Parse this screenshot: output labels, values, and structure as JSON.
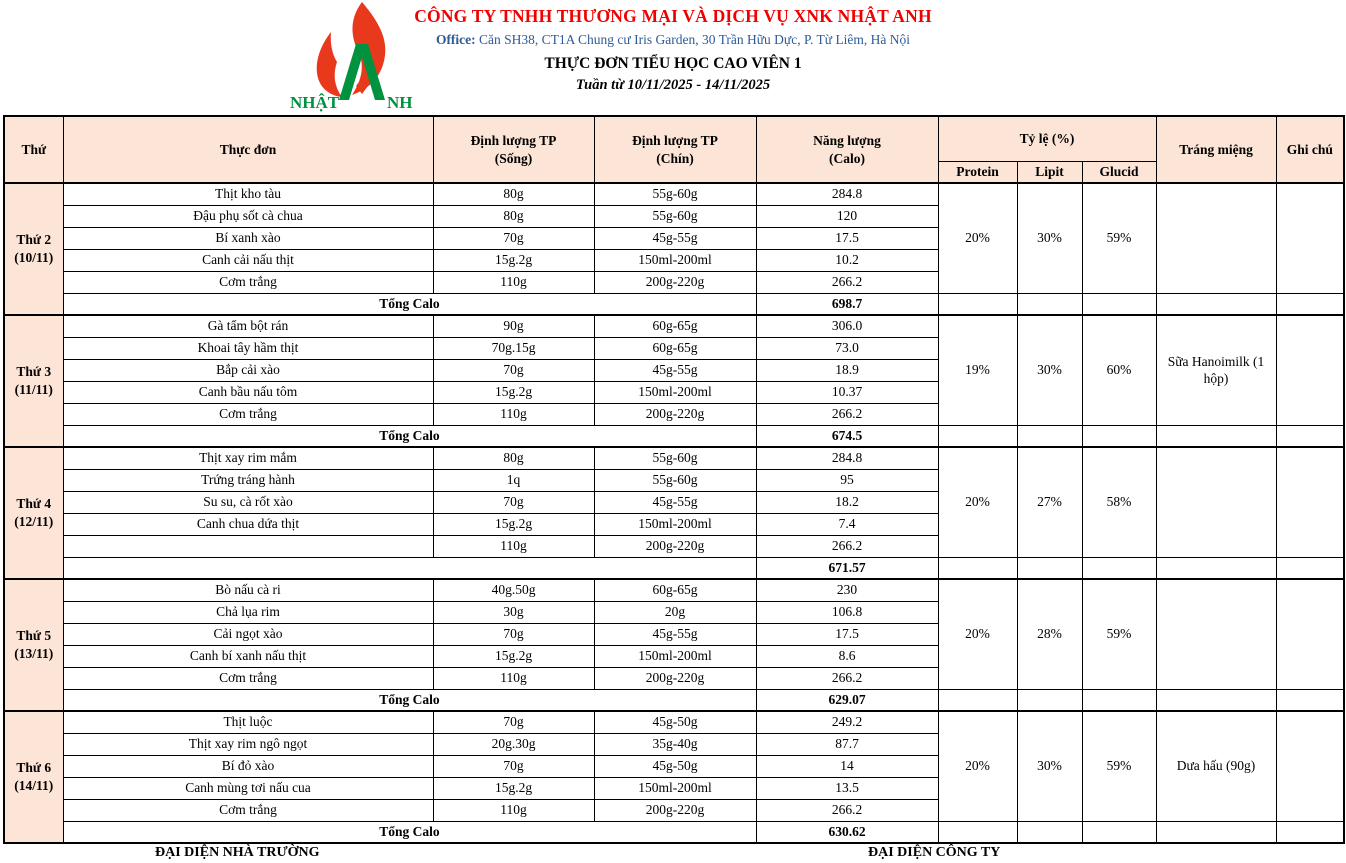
{
  "header": {
    "company": "CÔNG TY TNHH THƯƠNG MẠI VÀ DỊCH VỤ XNK NHẬT ANH",
    "office_label": "Office:",
    "office_address": "Căn SH38, CT1A Chung cư Iris Garden, 30 Trần Hữu Dực, P. Từ Liêm, Hà Nội",
    "title": "THỰC ĐƠN TIỂU HỌC CAO VIÊN 1",
    "week": "Tuần từ 10/11/2025 - 14/11/2025",
    "logo": {
      "text_left": "NHẬT",
      "text_right": "NH"
    },
    "colors": {
      "company_red": "#f10000",
      "office_blue": "#2e5b97",
      "header_peach": "#fce4d6",
      "logo_red": "#e8391d",
      "logo_green": "#00923f"
    }
  },
  "table": {
    "columns": {
      "day": "Thứ",
      "menu": "Thực đơn",
      "raw_line1": "Định lượng TP",
      "raw_line2": "(Sống)",
      "cooked_line1": "Định lượng TP",
      "cooked_line2": "(Chín)",
      "energy_line1": "Năng lượng",
      "energy_line2": "(Calo)",
      "ratio": "Tỷ lệ (%)",
      "protein": "Protein",
      "lipit": "Lipit",
      "glucid": "Glucid",
      "dessert": "Tráng miệng",
      "note": "Ghi chú"
    },
    "groups": [
      {
        "day": "Thứ 2",
        "date": "(10/11)",
        "dishes": [
          {
            "name": "Thịt kho tàu",
            "raw": "80g",
            "cooked": "55g-60g",
            "calo": "284.8"
          },
          {
            "name": "Đậu phụ sốt cà chua",
            "raw": "80g",
            "cooked": "55g-60g",
            "calo": "120"
          },
          {
            "name": "Bí xanh xào",
            "raw": "70g",
            "cooked": "45g-55g",
            "calo": "17.5"
          },
          {
            "name": "Canh cải nấu thịt",
            "raw": "15g.2g",
            "cooked": "150ml-200ml",
            "calo": "10.2"
          },
          {
            "name": "Cơm trắng",
            "raw": "110g",
            "cooked": "200g-220g",
            "calo": "266.2"
          }
        ],
        "total_label": "Tổng Calo",
        "total": "698.7",
        "protein": "20%",
        "lipit": "30%",
        "glucid": "59%",
        "dessert": "",
        "note": ""
      },
      {
        "day": "Thứ 3",
        "date": "(11/11)",
        "dishes": [
          {
            "name": "Gà tẩm bột rán",
            "raw": "90g",
            "cooked": "60g-65g",
            "calo": "306.0"
          },
          {
            "name": "Khoai tây hầm thịt",
            "raw": "70g.15g",
            "cooked": "60g-65g",
            "calo": "73.0"
          },
          {
            "name": "Bắp cải xào",
            "raw": "70g",
            "cooked": "45g-55g",
            "calo": "18.9"
          },
          {
            "name": "Canh bầu nấu tôm",
            "raw": "15g.2g",
            "cooked": "150ml-200ml",
            "calo": "10.37"
          },
          {
            "name": "Cơm trắng",
            "raw": "110g",
            "cooked": "200g-220g",
            "calo": "266.2"
          }
        ],
        "total_label": "Tổng Calo",
        "total": "674.5",
        "protein": "19%",
        "lipit": "30%",
        "glucid": "60%",
        "dessert": "Sữa Hanoimilk (1 hộp)",
        "note": ""
      },
      {
        "day": "Thứ 4",
        "date": "(12/11)",
        "dishes": [
          {
            "name": "Thịt xay rim mắm",
            "raw": "80g",
            "cooked": "55g-60g",
            "calo": "284.8"
          },
          {
            "name": "Trứng tráng hành",
            "raw": "1q",
            "cooked": "55g-60g",
            "calo": "95"
          },
          {
            "name": "Su su, cà rốt xào",
            "raw": "70g",
            "cooked": "45g-55g",
            "calo": "18.2"
          },
          {
            "name": "Canh chua dứa thịt",
            "raw": "15g.2g",
            "cooked": "150ml-200ml",
            "calo": "7.4"
          },
          {
            "name": "",
            "raw": "110g",
            "cooked": "200g-220g",
            "calo": "266.2"
          }
        ],
        "total_label": "",
        "total": "671.57",
        "protein": "20%",
        "lipit": "27%",
        "glucid": "58%",
        "dessert": "",
        "note": ""
      },
      {
        "day": "Thứ 5",
        "date": "(13/11)",
        "dishes": [
          {
            "name": "Bò nấu cà ri",
            "raw": "40g.50g",
            "cooked": "60g-65g",
            "calo": "230"
          },
          {
            "name": "Chả lụa rim",
            "raw": "30g",
            "cooked": "20g",
            "calo": "106.8"
          },
          {
            "name": "Cải ngọt xào",
            "raw": "70g",
            "cooked": "45g-55g",
            "calo": "17.5"
          },
          {
            "name": "Canh bí xanh nấu thịt",
            "raw": "15g.2g",
            "cooked": "150ml-200ml",
            "calo": "8.6"
          },
          {
            "name": "Cơm trắng",
            "raw": "110g",
            "cooked": "200g-220g",
            "calo": "266.2"
          }
        ],
        "total_label": "Tổng Calo",
        "total": "629.07",
        "protein": "20%",
        "lipit": "28%",
        "glucid": "59%",
        "dessert": "",
        "note": ""
      },
      {
        "day": "Thứ 6",
        "date": "(14/11)",
        "dishes": [
          {
            "name": "Thịt luộc",
            "raw": "70g",
            "cooked": "45g-50g",
            "calo": "249.2"
          },
          {
            "name": "Thịt xay rim ngô ngọt",
            "raw": "20g.30g",
            "cooked": "35g-40g",
            "calo": "87.7"
          },
          {
            "name": "Bí đỏ xào",
            "raw": "70g",
            "cooked": "45g-50g",
            "calo": "14"
          },
          {
            "name": "Canh mùng tơi nấu cua",
            "raw": "15g.2g",
            "cooked": "150ml-200ml",
            "calo": "13.5"
          },
          {
            "name": "Cơm trắng",
            "raw": "110g",
            "cooked": "200g-220g",
            "calo": "266.2"
          }
        ],
        "total_label": "Tổng Calo",
        "total": "630.62",
        "protein": "20%",
        "lipit": "30%",
        "glucid": "59%",
        "dessert": "Dưa hấu (90g)",
        "note": ""
      }
    ]
  },
  "footer": {
    "school_representative": "ĐẠI DIỆN NHÀ TRƯỜNG",
    "company_representative": "ĐẠI DIỆN CÔNG TY"
  }
}
